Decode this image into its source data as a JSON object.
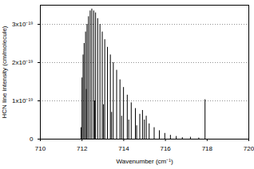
{
  "chart_data": {
    "type": "stick",
    "x_label": "Wavenumber (cm⁻¹)",
    "y_label": "HCN line intensity (cm/molecule)",
    "x": [
      711.95,
      712.0,
      712.05,
      712.1,
      712.17,
      712.2,
      712.24,
      712.31,
      712.39,
      712.47,
      712.56,
      712.6,
      712.65,
      712.75,
      712.86,
      712.97,
      713.03,
      713.09,
      713.22,
      713.36,
      713.42,
      713.5,
      713.66,
      713.82,
      713.9,
      713.99,
      714.17,
      714.24,
      714.36,
      714.56,
      714.62,
      714.77,
      714.9,
      714.99,
      715.08,
      715.22,
      715.46,
      715.71,
      715.97,
      716.24,
      716.52,
      716.81,
      717.2,
      717.6,
      717.9
    ],
    "values": [
      3e-20,
      1.6e-19,
      2.2e-19,
      2.5e-19,
      2.8e-19,
      1.3e-19,
      3e-19,
      3.2e-19,
      3.35e-19,
      3.4e-19,
      3.35e-19,
      1e-19,
      3.3e-19,
      3.15e-19,
      3e-19,
      2.8e-19,
      9e-20,
      2.6e-19,
      2.4e-19,
      2.2e-19,
      7e-20,
      2e-19,
      1.8e-19,
      1.55e-19,
      6e-20,
      1.35e-19,
      1.15e-19,
      5e-20,
      9.5e-20,
      8e-20,
      3.5e-20,
      6.5e-20,
      7.5e-20,
      5e-20,
      6e-20,
      4e-20,
      3e-20,
      2.2e-20,
      1.5e-20,
      1e-20,
      7e-21,
      4e-21,
      5e-21,
      3e-21,
      1.03e-19
    ],
    "color": "#000000",
    "xlim": [
      710,
      720
    ],
    "xticks": [
      710,
      712,
      714,
      716,
      718,
      720
    ],
    "ylim": [
      0,
      3.5e-19
    ],
    "yticks": [
      0,
      {
        "value": 1e-19,
        "label": "1x10⁻¹⁹"
      },
      {
        "value": 2e-19,
        "label": "2x10⁻¹⁹"
      },
      {
        "value": 3e-19,
        "label": "3x10⁻¹⁹"
      }
    ],
    "grid": true
  }
}
